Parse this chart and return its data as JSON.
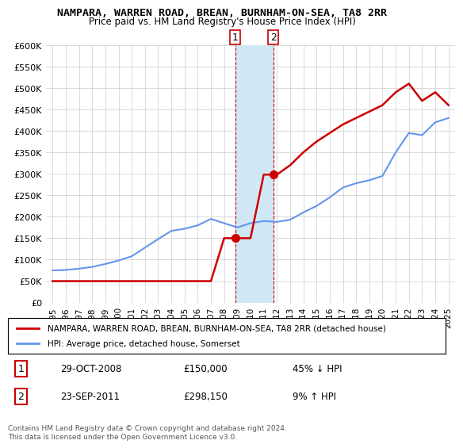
{
  "title": "NAMPARA, WARREN ROAD, BREAN, BURNHAM-ON-SEA, TA8 2RR",
  "subtitle": "Price paid vs. HM Land Registry's House Price Index (HPI)",
  "footer": "Contains HM Land Registry data © Crown copyright and database right 2024.\nThis data is licensed under the Open Government Licence v3.0.",
  "legend_label_red": "NAMPARA, WARREN ROAD, BREAN, BURNHAM-ON-SEA, TA8 2RR (detached house)",
  "legend_label_blue": "HPI: Average price, detached house, Somerset",
  "transactions": [
    {
      "num": 1,
      "date": "29-OCT-2008",
      "price": "£150,000",
      "change": "45% ↓ HPI"
    },
    {
      "num": 2,
      "date": "23-SEP-2011",
      "price": "£298,150",
      "change": "9% ↑ HPI"
    }
  ],
  "hpi_color": "#6495ED",
  "price_color": "#CC0000",
  "shade_color": "#D0E8F5",
  "marker_color": "#CC0000",
  "background_color": "#FFFFFF",
  "grid_color": "#CCCCCC",
  "ylim": [
    0,
    600000
  ],
  "yticks": [
    0,
    50000,
    100000,
    150000,
    200000,
    250000,
    300000,
    350000,
    400000,
    450000,
    500000,
    550000,
    600000
  ],
  "ytick_labels": [
    "£0",
    "£50K",
    "£100K",
    "£150K",
    "£200K",
    "£250K",
    "£300K",
    "£350K",
    "£400K",
    "£450K",
    "£500K",
    "£550K",
    "£600K"
  ],
  "hpi_years": [
    1995,
    1996,
    1997,
    1998,
    1999,
    2000,
    2001,
    2002,
    2003,
    2004,
    2005,
    2006,
    2007,
    2008,
    2009,
    2010,
    2011,
    2012,
    2013,
    2014,
    2015,
    2016,
    2017,
    2018,
    2019,
    2020,
    2021,
    2022,
    2023,
    2024,
    2025
  ],
  "hpi_values": [
    75000,
    76000,
    79000,
    83000,
    90000,
    98000,
    108000,
    128000,
    148000,
    167000,
    172000,
    180000,
    195000,
    185000,
    175000,
    185000,
    190000,
    188000,
    193000,
    210000,
    225000,
    245000,
    268000,
    278000,
    285000,
    295000,
    350000,
    395000,
    390000,
    420000,
    430000
  ],
  "price_years": [
    1995.0,
    1996.0,
    1997.0,
    1998.0,
    1999.0,
    2000.0,
    2001.0,
    2002.0,
    2003.0,
    2004.0,
    2005.0,
    2006.0,
    2007.0,
    2008.0,
    2009.0,
    2010.0,
    2011.0,
    2012.0,
    2013.0,
    2014.0,
    2015.0,
    2016.0,
    2017.0,
    2018.0,
    2019.0,
    2020.0,
    2021.0,
    2022.0,
    2023.0,
    2024.0,
    2025.0
  ],
  "price_values": [
    50000,
    50000,
    50000,
    50000,
    50000,
    50000,
    50000,
    50000,
    50000,
    50000,
    50000,
    50000,
    50000,
    150000,
    150000,
    150000,
    298150,
    298150,
    320000,
    350000,
    375000,
    395000,
    415000,
    430000,
    445000,
    460000,
    490000,
    510000,
    470000,
    490000,
    460000
  ],
  "transaction1_x": 2008.83,
  "transaction1_y": 150000,
  "transaction2_x": 2011.73,
  "transaction2_y": 298150,
  "shade_x1": 2008.83,
  "shade_x2": 2011.73,
  "box_color": "#CC0000",
  "xtick_years": [
    1995,
    1996,
    1997,
    1998,
    1999,
    2000,
    2001,
    2002,
    2003,
    2004,
    2005,
    2006,
    2007,
    2008,
    2009,
    2010,
    2011,
    2012,
    2013,
    2014,
    2015,
    2016,
    2017,
    2018,
    2019,
    2020,
    2021,
    2022,
    2023,
    2024,
    2025
  ]
}
